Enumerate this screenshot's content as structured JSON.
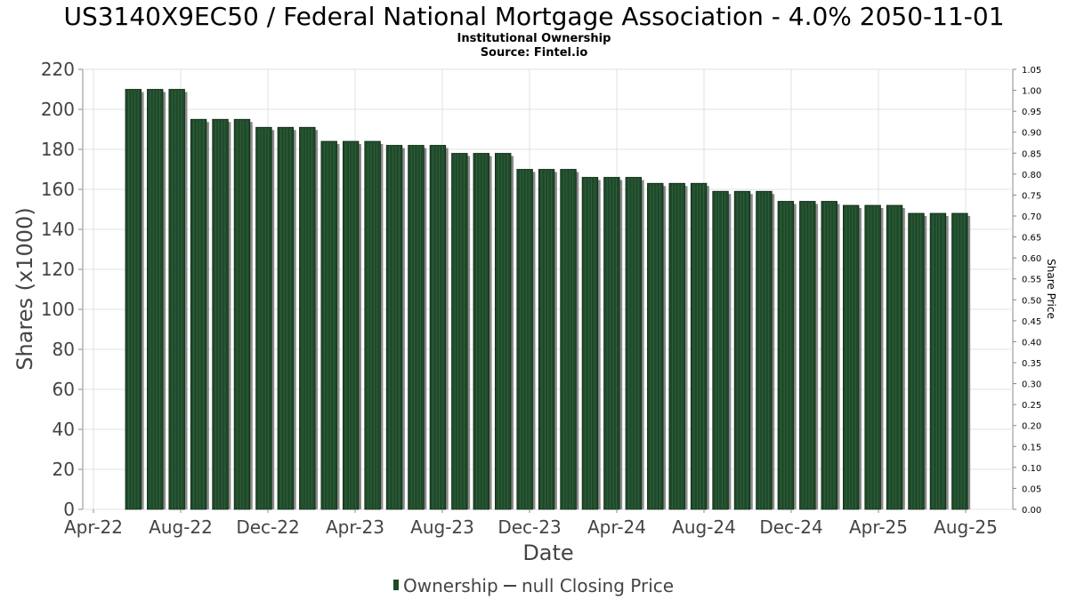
{
  "chart_data": {
    "type": "bar",
    "title": "US3140X9EC50 / Federal National Mortgage Association - 4.0% 2050-11-01",
    "subtitle_lines": [
      "Institutional Ownership",
      "Source: Fintel.io"
    ],
    "xlabel": "Date",
    "ylabel": "Shares (x1000)",
    "ylabel_right": "Share Price",
    "x_tick_labels": [
      "Apr-22",
      "Aug-22",
      "Dec-22",
      "Apr-23",
      "Aug-23",
      "Dec-23",
      "Apr-24",
      "Aug-24",
      "Dec-24",
      "Apr-25",
      "Aug-25"
    ],
    "ylim": [
      0,
      220
    ],
    "y_ticks": [
      0,
      20,
      40,
      60,
      80,
      100,
      120,
      140,
      160,
      180,
      200,
      220
    ],
    "right_ylim": [
      0,
      1.05
    ],
    "right_ticks": [
      "0.00",
      "0.05",
      "0.10",
      "0.15",
      "0.20",
      "0.25",
      "0.30",
      "0.35",
      "0.40",
      "0.45",
      "0.50",
      "0.55",
      "0.60",
      "0.65",
      "0.70",
      "0.75",
      "0.80",
      "0.85",
      "0.90",
      "0.95",
      "1.00",
      "1.05"
    ],
    "grid": true,
    "legend_position": "bottom-center",
    "series": [
      {
        "name": "Ownership",
        "color": "#1e4a2a",
        "values": [
          210,
          210,
          210,
          195,
          195,
          195,
          191,
          191,
          191,
          184,
          184,
          184,
          182,
          182,
          182,
          178,
          178,
          178,
          170,
          170,
          170,
          166,
          166,
          166,
          163,
          163,
          163,
          159,
          159,
          159,
          154,
          154,
          154,
          152,
          152,
          152,
          148,
          148,
          148
        ]
      },
      {
        "name": "null Closing Price",
        "color": "#444444",
        "values": []
      }
    ]
  }
}
